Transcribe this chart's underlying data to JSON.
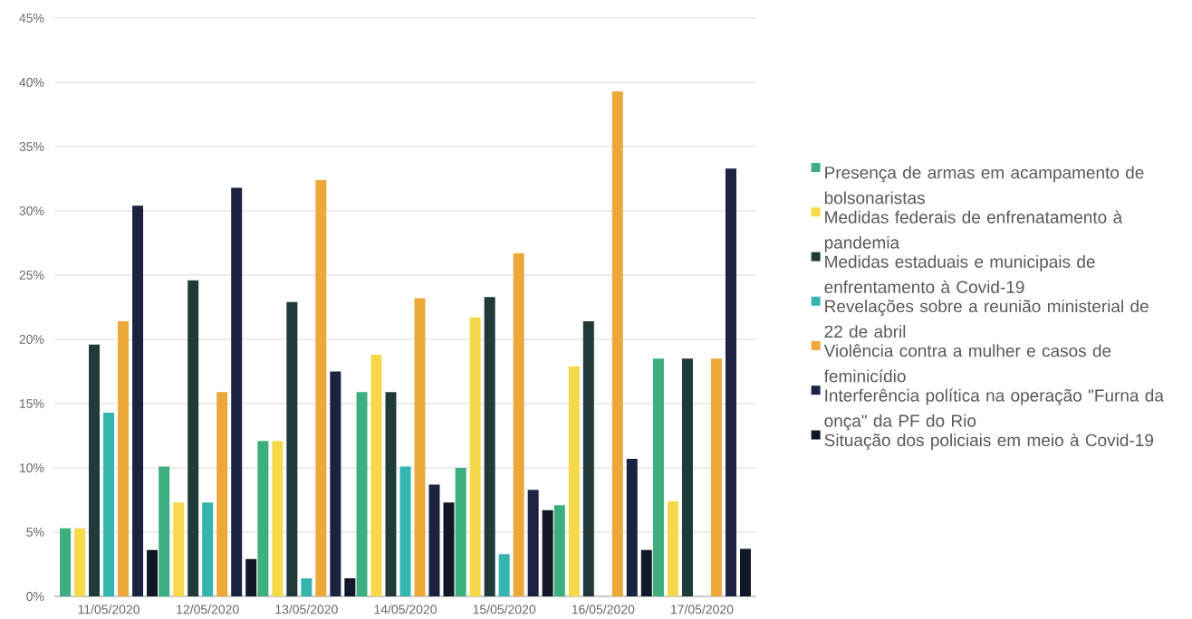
{
  "chart_data": {
    "type": "bar",
    "categories": [
      "11/05/2020",
      "12/05/2020",
      "13/05/2020",
      "14/05/2020",
      "15/05/2020",
      "16/05/2020",
      "17/05/2020"
    ],
    "series": [
      {
        "name": "Presença de armas em acampamento de bolsonaristas",
        "color": "#3daf7e",
        "values": [
          5.3,
          10.1,
          12.1,
          15.9,
          10.0,
          7.1,
          18.5
        ]
      },
      {
        "name": "Medidas federais de enfrenatamento à pandemia",
        "color": "#f5d949",
        "values": [
          5.3,
          7.3,
          12.1,
          18.8,
          21.7,
          17.9,
          7.4
        ]
      },
      {
        "name": "Medidas estaduais e municipais de enfrentamento à Covid-19",
        "color": "#1f3a38",
        "values": [
          19.6,
          24.6,
          22.9,
          15.9,
          23.3,
          21.4,
          18.5
        ]
      },
      {
        "name": "Revelações sobre a reunião ministerial de 22 de abril",
        "color": "#35b5b0",
        "values": [
          14.3,
          7.3,
          1.4,
          10.1,
          3.3,
          null,
          null
        ]
      },
      {
        "name": "Violência contra a mulher e casos de feminicídio",
        "color": "#eda83a",
        "values": [
          21.4,
          15.9,
          32.4,
          23.2,
          26.7,
          39.3,
          18.5
        ]
      },
      {
        "name": "Interferência política na operação \"Furna da onça\" da PF do Rio",
        "color": "#1b2340",
        "values": [
          30.4,
          31.8,
          17.5,
          8.7,
          8.3,
          10.7,
          33.3
        ]
      },
      {
        "name": "Situação dos policiais em meio à Covid-19",
        "color": "#111628",
        "values": [
          3.6,
          2.9,
          1.4,
          7.3,
          6.7,
          3.6,
          3.7
        ]
      }
    ],
    "ylim": [
      0,
      45
    ],
    "yticks": [
      {
        "value": 0,
        "label": "0%"
      },
      {
        "value": 5,
        "label": "5%"
      },
      {
        "value": 10,
        "label": "10%"
      },
      {
        "value": 15,
        "label": "15%"
      },
      {
        "value": 20,
        "label": "20%"
      },
      {
        "value": 25,
        "label": "25%"
      },
      {
        "value": 30,
        "label": "30%"
      },
      {
        "value": 35,
        "label": "35%"
      },
      {
        "value": 40,
        "label": "40%"
      },
      {
        "value": 45,
        "label": "45%"
      }
    ],
    "grid": "y",
    "legend": "right"
  }
}
